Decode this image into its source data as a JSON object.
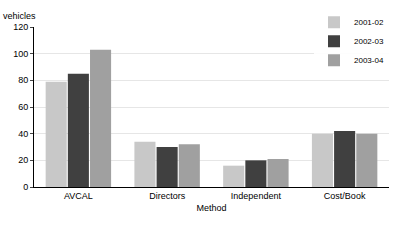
{
  "chart_data": {
    "type": "bar",
    "ylabel": "vehicles",
    "xlabel": "Method",
    "categories": [
      "AVCAL",
      "Directors",
      "Independent",
      "Cost/Book"
    ],
    "series": [
      {
        "name": "2001-02",
        "color": "#c8c8c8",
        "values": [
          79,
          34,
          16,
          40
        ]
      },
      {
        "name": "2002-03",
        "color": "#404040",
        "values": [
          85,
          30,
          20,
          42
        ]
      },
      {
        "name": "2003-04",
        "color": "#a0a0a0",
        "values": [
          103,
          32,
          21,
          40
        ]
      }
    ],
    "ylim": [
      0,
      120
    ],
    "yticks": [
      0,
      20,
      40,
      60,
      80,
      100,
      120
    ],
    "grid": true,
    "legend": "upper right"
  }
}
